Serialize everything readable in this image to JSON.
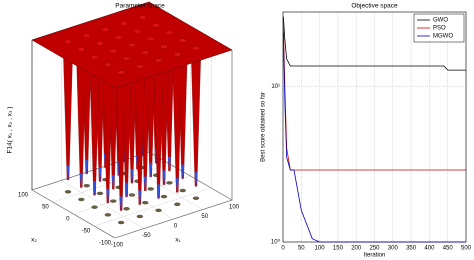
{
  "chart_data": [
    {
      "type": "surface",
      "title": "Parameter space",
      "xlabel": "x₁",
      "ylabel": "x₂",
      "zlabel": "F14( x₁ , x₂ , x₃ )",
      "xlim": [
        -100,
        100
      ],
      "ylim": [
        -100,
        100
      ],
      "xticks": [
        -100,
        -50,
        0,
        50,
        100
      ],
      "yticks": [
        -100,
        -50,
        0,
        50,
        100
      ],
      "color": "#c00000",
      "grid": true
    },
    {
      "type": "line",
      "title": "Objective space",
      "xlabel": "Iteration",
      "ylabel": "Best score obtained so far",
      "x": [
        1,
        5,
        10,
        20,
        30,
        50,
        80,
        100,
        200,
        300,
        440,
        450,
        500
      ],
      "series": [
        {
          "name": "GWO",
          "color": "#000000",
          "values": [
            28,
            20,
            15,
            13.5,
            13.5,
            13.5,
            13.5,
            13.5,
            13.5,
            13.5,
            13.5,
            12.7,
            12.7
          ]
        },
        {
          "name": "PSO",
          "color": "#d00000",
          "values": [
            25,
            10,
            4,
            2.9,
            2.9,
            2.9,
            2.9,
            2.9,
            2.9,
            2.9,
            2.9,
            2.9,
            2.9
          ]
        },
        {
          "name": "MGWO",
          "color": "#0000c0",
          "values": [
            22,
            8,
            3.5,
            2.9,
            2.9,
            1.6,
            1.05,
            1,
            1,
            1,
            1,
            1,
            1
          ]
        }
      ],
      "xlim": [
        0,
        500
      ],
      "xticks": [
        0,
        50,
        100,
        150,
        200,
        250,
        300,
        350,
        400,
        450,
        500
      ],
      "ylim": [
        1,
        30
      ],
      "yticks": [
        {
          "value": 1,
          "label": "10⁰"
        },
        {
          "value": 10,
          "label": "10¹"
        }
      ],
      "log_y": true,
      "grid": true,
      "legend": "top-right"
    }
  ]
}
